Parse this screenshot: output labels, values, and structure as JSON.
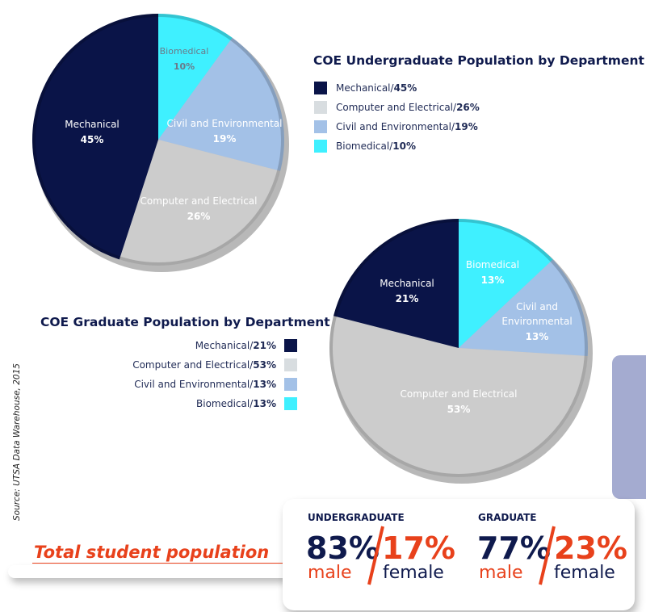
{
  "chart_data": [
    {
      "type": "pie",
      "title": "COE Undergraduate Population by Department",
      "slices": [
        {
          "label": "Biomedical",
          "value": 10,
          "pct_text": "10%",
          "color": "#3ff0ff"
        },
        {
          "label": "Civil and Environmental",
          "value": 19,
          "pct_text": "19%",
          "color": "#a3c1e7"
        },
        {
          "label": "Computer and Electrical",
          "value": 26,
          "pct_text": "26%",
          "color": "#cccccc"
        },
        {
          "label": "Mechanical",
          "value": 45,
          "pct_text": "45%",
          "color": "#0a1448"
        }
      ],
      "legend": [
        {
          "label": "Mechanical/",
          "pct": "45%",
          "color": "#0a1448"
        },
        {
          "label": "Computer and Electrical/",
          "pct": "26%",
          "color": "#d8dde0"
        },
        {
          "label": "Civil and Environmental/",
          "pct": "19%",
          "color": "#a3c1e7"
        },
        {
          "label": "Biomedical/",
          "pct": "10%",
          "color": "#3ff0ff"
        }
      ]
    },
    {
      "type": "pie",
      "title": "COE Graduate Population by Department",
      "slices": [
        {
          "label": "Biomedical",
          "value": 13,
          "pct_text": "13%",
          "color": "#3ff0ff"
        },
        {
          "label": "Civil and Environmental",
          "value": 13,
          "pct_text": "13%",
          "color": "#a3c1e7"
        },
        {
          "label": "Computer and Electrical",
          "value": 53,
          "pct_text": "53%",
          "color": "#cccccc"
        },
        {
          "label": "Mechanical",
          "value": 21,
          "pct_text": "21%",
          "color": "#0a1448"
        }
      ],
      "legend": [
        {
          "label": "Mechanical/",
          "pct": "21%",
          "color": "#0a1448"
        },
        {
          "label": "Computer and Electrical/",
          "pct": "53%",
          "color": "#d8dde0"
        },
        {
          "label": "Civil and Environmental/",
          "pct": "13%",
          "color": "#a3c1e7"
        },
        {
          "label": "Biomedical/",
          "pct": "13%",
          "color": "#3ff0ff"
        }
      ]
    }
  ],
  "source_note": "Source: UTSA Data Warehouse, 2015",
  "total": {
    "title": "Total student population",
    "undergraduate": {
      "label": "UNDERGRADUATE",
      "male_pct": "83%",
      "male_label": "male",
      "female_pct": "17%",
      "female_label": "female"
    },
    "graduate": {
      "label": "GRADUATE",
      "male_pct": "77%",
      "male_label": "male",
      "female_pct": "23%",
      "female_label": "female"
    }
  },
  "colors": {
    "navy": "#0f1a4d",
    "accent_red": "#e8411b",
    "side_bar": "#a4abd0"
  }
}
